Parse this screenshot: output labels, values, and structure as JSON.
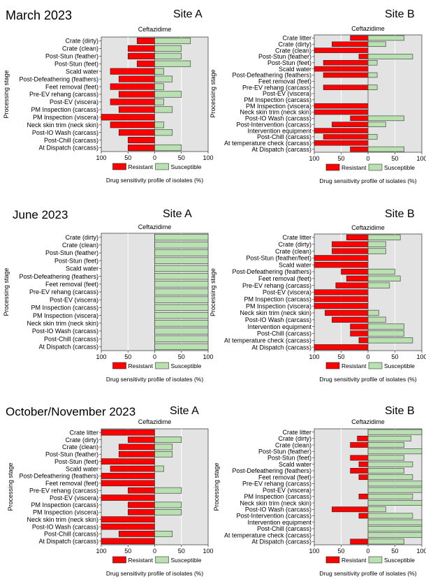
{
  "periods": [
    "March 2023",
    "June 2023",
    "October/November 2023"
  ],
  "sites": [
    "Site A",
    "Site B"
  ],
  "colors": {
    "resistant": "#ff0000",
    "susceptible": "#b8e0b0",
    "plot_bg": "#e3e3e3",
    "grid": "#ffffff"
  },
  "chart_data": [
    {
      "type": "bar",
      "period": "March 2023",
      "site": "Site A",
      "title": "Ceftazidime",
      "xlabel": "Drug sensitivity profile of isolates (%)",
      "ylabel": "Processing stage",
      "xlim": [
        -100,
        100
      ],
      "xticks": [
        "100",
        "50",
        "0",
        "50",
        "100"
      ],
      "grid": true,
      "legend": "bottom",
      "categories": [
        "Crate (dirty)",
        "Crate (clean)",
        "Post-Stun (feather)",
        "Post-Stun (feet)",
        "Scald water",
        "Post-Defeathering (feathers)",
        "Feet removal (feet)",
        "Pre-EV rehang (carcass)",
        "Post-EV (viscera)",
        "PM Inspection (carcass)",
        "PM Inspection (viscera)",
        "Neck skin trim (neck skin)",
        "Post-IO Wash (carcass)",
        "Post-Chill (carcass)",
        "At Dispatch (carcass)"
      ],
      "series": [
        {
          "name": "Resistant",
          "values": [
            33,
            50,
            50,
            33,
            83,
            67,
            83,
            67,
            83,
            67,
            100,
            83,
            67,
            50,
            50
          ]
        },
        {
          "name": "Susceptible",
          "values": [
            67,
            50,
            50,
            67,
            17,
            33,
            17,
            50,
            17,
            33,
            0,
            17,
            33,
            0,
            50
          ]
        }
      ]
    },
    {
      "type": "bar",
      "period": "March 2023",
      "site": "Site B",
      "title": "Ceftazidime",
      "xlabel": "Drug sensitivity profile of isolates (%)",
      "ylabel": "Processing stage",
      "xlim": [
        -100,
        100
      ],
      "xticks": [
        "100",
        "50",
        "0",
        "50",
        "100"
      ],
      "grid": true,
      "legend": "bottom",
      "categories": [
        "Crate litter",
        "Crate (dirty)",
        "Crate (clean)",
        "Post-Stun (feather)",
        "Post-Stun (feet)",
        "Scald water",
        "Post-Defeathering (feathers)",
        "Feet removal (feet)",
        "Pre-EV rehang (carcass)",
        "Post-EV (viscera)",
        "PM Inspection (carcass)",
        "PM Inspection (viscera)",
        "Neck skin trim (neck skin)",
        "Post-IO Wash (carcass)",
        "Post-Intervention (carcass)",
        "Intervention equipment",
        "Post-Chill (carcass)",
        "At temperature check (carcass)",
        "At Dispatch (carcass)"
      ],
      "series": [
        {
          "name": "Resistant",
          "values": [
            33,
            67,
            100,
            17,
            83,
            100,
            83,
            0,
            83,
            0,
            0,
            100,
            100,
            33,
            67,
            100,
            83,
            100,
            33
          ]
        },
        {
          "name": "Susceptible",
          "values": [
            67,
            33,
            0,
            83,
            17,
            0,
            17,
            0,
            17,
            0,
            0,
            0,
            0,
            67,
            33,
            0,
            17,
            0,
            67
          ]
        }
      ]
    },
    {
      "type": "bar",
      "period": "June 2023",
      "site": "Site A",
      "title": "Ceftazidime",
      "xlabel": "Drug sensitivity profile of isolates (%)",
      "ylabel": "Processing stage",
      "xlim": [
        -100,
        100
      ],
      "xticks": [
        "100",
        "50",
        "0",
        "50",
        "100"
      ],
      "grid": true,
      "legend": "bottom",
      "categories": [
        "Crate (dirty)",
        "Crate (clean)",
        "Post-Stun (feather)",
        "Post-Stun (feet)",
        "Scald water",
        "Post-Defeathering (feathers)",
        "Feet removal (feet)",
        "Pre-EV rehang (carcass)",
        "Post-EV (viscera)",
        "PM Inspection (carcass)",
        "PM Inspection (viscera)",
        "Neck skin trim (neck skin)",
        "Post-IO Wash (carcass)",
        "Post-Chill (carcass)",
        "At Dispatch (carcass)"
      ],
      "series": [
        {
          "name": "Resistant",
          "values": [
            0,
            0,
            0,
            0,
            0,
            0,
            0,
            0,
            0,
            0,
            0,
            0,
            0,
            0,
            0
          ]
        },
        {
          "name": "Susceptible",
          "values": [
            100,
            100,
            100,
            100,
            100,
            100,
            100,
            100,
            100,
            100,
            100,
            100,
            100,
            100,
            100
          ]
        }
      ]
    },
    {
      "type": "bar",
      "period": "June 2023",
      "site": "Site B",
      "title": "Ceftazidime",
      "xlabel": "Drug sensitivity profile of isolates (%)",
      "ylabel": "Processing stage",
      "xlim": [
        -100,
        100
      ],
      "xticks": [
        "100",
        "50",
        "0",
        "50",
        "100"
      ],
      "grid": true,
      "legend": "bottom",
      "categories": [
        "Crate litter",
        "Crate (dirty)",
        "Crate (clean)",
        "Post-Stun (feather/feet)",
        "Scald water",
        "Post-Defeathering (feathers)",
        "Feet removal (feet)",
        "Pre-EV rehang (carcass)",
        "Post-EV (viscera)",
        "PM Inspection (carcass)",
        "PM Inspection (viscera)",
        "Neck skin trim (neck skin)",
        "Post-IO Wash (carcass)",
        "Intervention equipment",
        "Post-Chill (carcass)",
        "At temperature check (carcass)",
        "At Dispatch (carcass)"
      ],
      "series": [
        {
          "name": "Resistant",
          "values": [
            40,
            67,
            67,
            100,
            100,
            50,
            40,
            60,
            100,
            100,
            100,
            80,
            67,
            33,
            33,
            17,
            100
          ]
        },
        {
          "name": "Susceptible",
          "values": [
            60,
            33,
            33,
            0,
            0,
            50,
            60,
            40,
            0,
            0,
            0,
            20,
            33,
            67,
            67,
            83,
            0
          ]
        }
      ]
    },
    {
      "type": "bar",
      "period": "October/November 2023",
      "site": "Site A",
      "title": "Ceftazidime",
      "xlabel": "Drug sensitivity profile of isolates (%)",
      "ylabel": "Processing stage",
      "xlim": [
        -100,
        100
      ],
      "xticks": [
        "100",
        "50",
        "0",
        "50",
        "100"
      ],
      "grid": true,
      "legend": "bottom",
      "categories": [
        "Crate litter",
        "Crate (dirty)",
        "Crate (clean)",
        "Post-Stun (feather)",
        "Post-Stun (feet)",
        "Scald water",
        "Post-Defeathering (feathers)",
        "Feet removal (feet)",
        "Pre-EV rehang (carcass)",
        "Post-EV (viscera)",
        "PM Inspection (carcass)",
        "PM Inspection (viscera)",
        "Neck skin trim (neck skin)",
        "Post-IO Wash (carcass)",
        "Post-Chill (carcass)",
        "At Dispatch (carcass)"
      ],
      "series": [
        {
          "name": "Resistant",
          "values": [
            100,
            50,
            67,
            67,
            100,
            83,
            100,
            100,
            50,
            100,
            50,
            50,
            100,
            100,
            67,
            100
          ]
        },
        {
          "name": "Susceptible",
          "values": [
            0,
            50,
            33,
            33,
            0,
            17,
            0,
            0,
            50,
            0,
            50,
            50,
            0,
            0,
            33,
            0
          ]
        }
      ]
    },
    {
      "type": "bar",
      "period": "October/November 2023",
      "site": "Site B",
      "title": "Ceftazidime",
      "xlabel": "Drug sensitivity profile of isolates (%)",
      "ylabel": "Processing stage",
      "xlim": [
        -100,
        100
      ],
      "xticks": [
        "100",
        "50",
        "0",
        "50",
        "100"
      ],
      "grid": true,
      "legend": "bottom",
      "categories": [
        "Crate litter",
        "Crate (dirty)",
        "Crate (clean)",
        "Post-Stun (feather)",
        "Post-Stun (feet)",
        "Scald water",
        "Post-Defeathering (feathers)",
        "Feet removal (feet)",
        "Pre-EV rehang (carcass)",
        "Post-EV (viscera)",
        "PM Inspection (carcass)",
        "Neck skin trim (neck skin)",
        "Post-IO Wash (carcass)",
        "Post-Intervention (carcass)",
        "Intervention equipment",
        "Post-Chill (carcass)",
        "At temperature check (carcass)",
        "At Dispatch (carcass)"
      ],
      "series": [
        {
          "name": "Resistant",
          "values": [
            0,
            20,
            33,
            0,
            33,
            17,
            33,
            17,
            0,
            0,
            17,
            0,
            67,
            17,
            0,
            0,
            0,
            33
          ]
        },
        {
          "name": "Susceptible",
          "values": [
            100,
            80,
            67,
            100,
            67,
            83,
            67,
            83,
            100,
            100,
            83,
            100,
            33,
            83,
            100,
            100,
            100,
            67
          ]
        }
      ]
    }
  ]
}
